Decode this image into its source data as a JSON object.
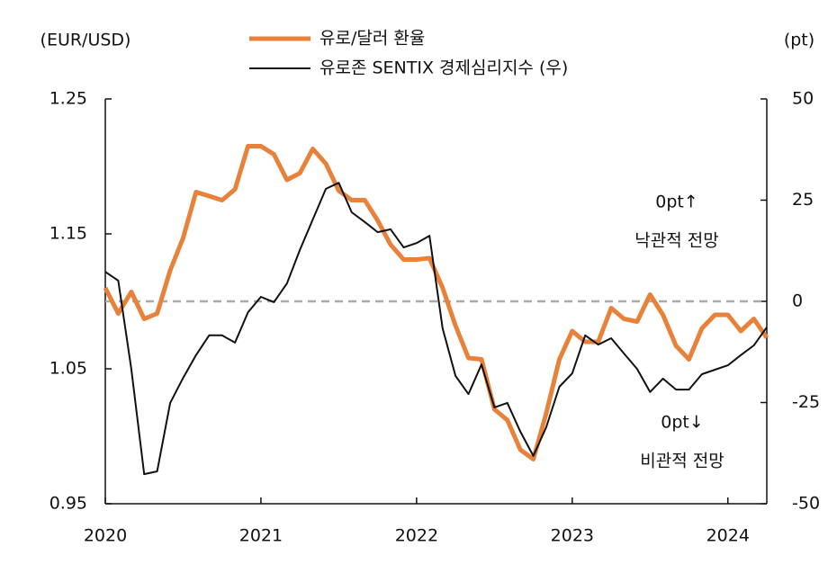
{
  "chart_data": {
    "type": "line",
    "y_label": "(EUR/USD)",
    "y2_label": "(pt)",
    "x": [
      2020,
      2020.083,
      2020.167,
      2020.25,
      2020.333,
      2020.417,
      2020.5,
      2020.583,
      2020.667,
      2020.75,
      2020.833,
      2020.917,
      2021,
      2021.083,
      2021.167,
      2021.25,
      2021.333,
      2021.417,
      2021.5,
      2021.583,
      2021.667,
      2021.75,
      2021.833,
      2021.917,
      2022,
      2022.083,
      2022.167,
      2022.25,
      2022.333,
      2022.417,
      2022.5,
      2022.583,
      2022.667,
      2022.75,
      2022.833,
      2022.917,
      2023,
      2023.083,
      2023.167,
      2023.25,
      2023.333,
      2023.417,
      2023.5,
      2023.583,
      2023.667,
      2023.75,
      2023.833,
      2023.917,
      2024,
      2024.083,
      2024.167,
      2024.25
    ],
    "series": [
      {
        "name": "유로/달러 환율",
        "color": "#e8823a",
        "axis": "y",
        "values": [
          1.11,
          1.091,
          1.107,
          1.087,
          1.091,
          1.123,
          1.147,
          1.181,
          1.178,
          1.175,
          1.183,
          1.215,
          1.215,
          1.209,
          1.19,
          1.195,
          1.213,
          1.202,
          1.182,
          1.175,
          1.175,
          1.16,
          1.142,
          1.131,
          1.131,
          1.132,
          1.11,
          1.082,
          1.058,
          1.057,
          1.02,
          1.012,
          0.99,
          0.983,
          1.017,
          1.057,
          1.078,
          1.07,
          1.07,
          1.095,
          1.087,
          1.085,
          1.105,
          1.09,
          1.067,
          1.057,
          1.08,
          1.09,
          1.09,
          1.078,
          1.087,
          1.073
        ]
      },
      {
        "name": "유로존 SENTIX  경제심리지수 (우)",
        "color": "#111111",
        "axis": "y2",
        "values": [
          7.3,
          5.1,
          -16.7,
          -42.7,
          -42.0,
          -25.1,
          -18.9,
          -13.3,
          -8.4,
          -8.4,
          -10.2,
          -2.7,
          1.1,
          -0.2,
          4.4,
          12.7,
          20.2,
          27.8,
          29.3,
          22.0,
          19.6,
          17.1,
          17.8,
          13.3,
          14.4,
          16.2,
          -6.7,
          -18.4,
          -22.9,
          -15.6,
          -26.2,
          -25.1,
          -32.2,
          -38.2,
          -31.1,
          -21.1,
          -17.8,
          -8.4,
          -10.7,
          -9.1,
          -12.9,
          -16.7,
          -22.4,
          -19.1,
          -21.8,
          -21.8,
          -18.0,
          -16.9,
          -15.8,
          -13.3,
          -10.9,
          -6.4
        ]
      }
    ],
    "xlim": [
      2020,
      2024.25
    ],
    "xticks": [
      2020,
      2021,
      2022,
      2023,
      2024
    ],
    "ylim": [
      0.95,
      1.25
    ],
    "yticks": [
      0.95,
      1.05,
      1.15,
      1.25
    ],
    "y2lim": [
      -50,
      50
    ],
    "y2ticks": [
      -50,
      -25,
      0,
      25,
      50
    ],
    "reference_line": {
      "axis": "y2",
      "value": 0,
      "color": "#aaaaaa"
    },
    "annotations": [
      "0pt↑",
      "낙관적 전망",
      "0pt↓",
      "비관적 전망"
    ]
  }
}
